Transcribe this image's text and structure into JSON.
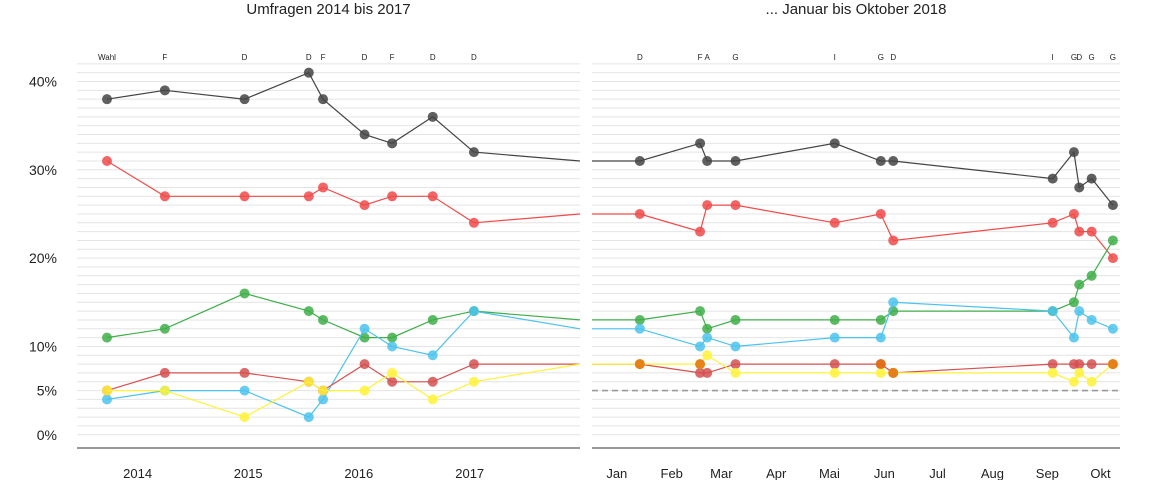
{
  "chart_data": {
    "type": "line",
    "y_ticks": [
      "0%",
      "5%",
      "10%",
      "20%",
      "30%",
      "40%"
    ],
    "y_tick_values": [
      0,
      5,
      10,
      20,
      30,
      40
    ],
    "ylim": [
      -1.5,
      43
    ],
    "grid": "horizontal lines every 1%",
    "threshold": 5,
    "colors": {
      "black": "#444444",
      "red": "#f04a4a",
      "green": "#3fae49",
      "blue": "#4cc3ec",
      "darkred": "#d55050",
      "yellow": "#fff23a",
      "orange": "#e07010"
    },
    "panels": [
      {
        "title": "Umfragen 2014 bis 2017",
        "xlim": [
          "2013-06-15",
          "2017-12-31"
        ],
        "x_ticks": [
          {
            "date": "2014-01-01",
            "label": "2014"
          },
          {
            "date": "2015-01-01",
            "label": "2015"
          },
          {
            "date": "2016-01-01",
            "label": "2016"
          },
          {
            "date": "2017-01-01",
            "label": "2017"
          }
        ],
        "sources": [
          {
            "date": "2013-09-22",
            "label": "Wahl"
          },
          {
            "date": "2014-04-01",
            "label": "F"
          },
          {
            "date": "2014-12-20",
            "label": "D"
          },
          {
            "date": "2015-07-20",
            "label": "D"
          },
          {
            "date": "2015-09-05",
            "label": "F"
          },
          {
            "date": "2016-01-20",
            "label": "D"
          },
          {
            "date": "2016-04-20",
            "label": "F"
          },
          {
            "date": "2016-09-01",
            "label": "D"
          },
          {
            "date": "2017-01-15",
            "label": "D"
          }
        ],
        "series": [
          {
            "color": "black",
            "dates": [
              "2013-09-22",
              "2014-04-01",
              "2014-12-20",
              "2015-07-20",
              "2015-09-05",
              "2016-01-20",
              "2016-04-20",
              "2016-09-01",
              "2017-01-15",
              "2017-12-31"
            ],
            "values": [
              38,
              39,
              38,
              41,
              38,
              34,
              33,
              36,
              32,
              31
            ],
            "markers": 9
          },
          {
            "color": "red",
            "dates": [
              "2013-09-22",
              "2014-04-01",
              "2014-12-20",
              "2015-07-20",
              "2015-09-05",
              "2016-01-20",
              "2016-04-20",
              "2016-09-01",
              "2017-01-15",
              "2017-12-31"
            ],
            "values": [
              31,
              27,
              27,
              27,
              28,
              26,
              27,
              27,
              24,
              25
            ],
            "markers": 9
          },
          {
            "color": "green",
            "dates": [
              "2013-09-22",
              "2014-04-01",
              "2014-12-20",
              "2015-07-20",
              "2015-09-05",
              "2016-01-20",
              "2016-04-20",
              "2016-09-01",
              "2017-01-15",
              "2017-12-31"
            ],
            "values": [
              11,
              12,
              16,
              14,
              13,
              11,
              11,
              13,
              14,
              13
            ],
            "markers": 9
          },
          {
            "color": "blue",
            "dates": [
              "2013-09-22",
              "2014-04-01",
              "2014-12-20",
              "2015-07-20",
              "2015-09-05",
              "2016-01-20",
              "2016-04-20",
              "2016-09-01",
              "2017-01-15",
              "2017-12-31"
            ],
            "values": [
              4,
              5,
              5,
              2,
              4,
              12,
              10,
              9,
              14,
              12
            ],
            "markers": 9
          },
          {
            "color": "darkred",
            "dates": [
              "2013-09-22",
              "2014-04-01",
              "2014-12-20",
              "2015-07-20",
              "2015-09-05",
              "2016-01-20",
              "2016-04-20",
              "2016-09-01",
              "2017-01-15",
              "2017-12-31"
            ],
            "values": [
              5,
              7,
              7,
              6,
              5,
              8,
              6,
              6,
              8,
              8
            ],
            "markers": 9
          },
          {
            "color": "yellow",
            "dates": [
              "2013-09-22",
              "2014-04-01",
              "2014-12-20",
              "2015-07-20",
              "2015-09-05",
              "2016-01-20",
              "2016-04-20",
              "2016-09-01",
              "2017-01-15",
              "2017-12-31"
            ],
            "values": [
              5,
              5,
              2,
              6,
              5,
              5,
              7,
              4,
              6,
              8
            ],
            "markers": 9
          }
        ]
      },
      {
        "title": "... Januar bis Oktober 2018",
        "xlim": [
          "2018-01-01",
          "2018-10-26"
        ],
        "x_ticks": [
          {
            "date": "2018-01-15",
            "label": "Jan"
          },
          {
            "date": "2018-02-15",
            "label": "Feb"
          },
          {
            "date": "2018-03-15",
            "label": "Mar"
          },
          {
            "date": "2018-04-15",
            "label": "Apr"
          },
          {
            "date": "2018-05-15",
            "label": "Mai"
          },
          {
            "date": "2018-06-15",
            "label": "Jun"
          },
          {
            "date": "2018-07-15",
            "label": "Jul"
          },
          {
            "date": "2018-08-15",
            "label": "Aug"
          },
          {
            "date": "2018-09-15",
            "label": "Sep"
          },
          {
            "date": "2018-10-15",
            "label": "Okt"
          }
        ],
        "sources": [
          {
            "date": "2018-01-28",
            "label": "D"
          },
          {
            "date": "2018-03-03",
            "label": "F"
          },
          {
            "date": "2018-03-07",
            "label": "A"
          },
          {
            "date": "2018-03-23",
            "label": "G"
          },
          {
            "date": "2018-05-18",
            "label": "I"
          },
          {
            "date": "2018-06-13",
            "label": "G"
          },
          {
            "date": "2018-06-20",
            "label": "D"
          },
          {
            "date": "2018-09-18",
            "label": "I"
          },
          {
            "date": "2018-09-30",
            "label": "G"
          },
          {
            "date": "2018-10-03",
            "label": "D"
          },
          {
            "date": "2018-10-10",
            "label": "G"
          },
          {
            "date": "2018-10-22",
            "label": "G"
          }
        ],
        "series": [
          {
            "color": "black",
            "dates": [
              "2018-01-01",
              "2018-01-28",
              "2018-03-03",
              "2018-03-07",
              "2018-03-23",
              "2018-05-18",
              "2018-06-13",
              "2018-06-20",
              "2018-09-18",
              "2018-09-30",
              "2018-10-03",
              "2018-10-10",
              "2018-10-22"
            ],
            "values": [
              31,
              31,
              33,
              31,
              31,
              33,
              31,
              31,
              29,
              32,
              28,
              29,
              26
            ],
            "markers": 12
          },
          {
            "color": "red",
            "dates": [
              "2018-01-01",
              "2018-01-28",
              "2018-03-03",
              "2018-03-07",
              "2018-03-23",
              "2018-05-18",
              "2018-06-13",
              "2018-06-20",
              "2018-09-18",
              "2018-09-30",
              "2018-10-03",
              "2018-10-10",
              "2018-10-22"
            ],
            "values": [
              25,
              25,
              23,
              26,
              26,
              24,
              25,
              22,
              24,
              25,
              23,
              23,
              20
            ],
            "markers": 12
          },
          {
            "color": "green",
            "dates": [
              "2018-01-01",
              "2018-01-28",
              "2018-03-03",
              "2018-03-07",
              "2018-03-23",
              "2018-05-18",
              "2018-06-13",
              "2018-06-20",
              "2018-09-18",
              "2018-09-30",
              "2018-10-03",
              "2018-10-10",
              "2018-10-22"
            ],
            "values": [
              13,
              13,
              14,
              12,
              13,
              13,
              13,
              14,
              14,
              15,
              17,
              18,
              22
            ],
            "markers": 12
          },
          {
            "color": "blue",
            "dates": [
              "2018-01-01",
              "2018-01-28",
              "2018-03-03",
              "2018-03-07",
              "2018-03-23",
              "2018-05-18",
              "2018-06-13",
              "2018-06-20",
              "2018-09-18",
              "2018-09-30",
              "2018-10-03",
              "2018-10-10",
              "2018-10-22"
            ],
            "values": [
              12,
              12,
              10,
              11,
              10,
              11,
              11,
              15,
              14,
              11,
              14,
              13,
              12
            ],
            "markers": 12
          },
          {
            "color": "darkred",
            "dates": [
              "2018-01-01",
              "2018-01-28",
              "2018-03-03",
              "2018-03-07",
              "2018-03-23",
              "2018-05-18",
              "2018-06-13",
              "2018-06-20",
              "2018-09-18",
              "2018-09-30",
              "2018-10-03",
              "2018-10-10",
              "2018-10-22"
            ],
            "values": [
              8,
              8,
              7,
              7,
              8,
              8,
              8,
              7,
              8,
              8,
              8,
              8,
              8
            ],
            "markers": 12
          },
          {
            "color": "yellow",
            "dates": [
              "2018-01-01",
              "2018-01-28",
              "2018-03-03",
              "2018-03-07",
              "2018-03-23",
              "2018-05-18",
              "2018-06-13",
              "2018-06-20",
              "2018-09-18",
              "2018-09-30",
              "2018-10-03",
              "2018-10-10",
              "2018-10-22"
            ],
            "values": [
              8,
              8,
              8,
              9,
              7,
              7,
              7,
              7,
              7,
              6,
              7,
              6,
              8
            ],
            "markers": 12
          },
          {
            "color": "orange",
            "dates": [
              "2018-01-28",
              "2018-03-03",
              "2018-06-13",
              "2018-06-20",
              "2018-10-22"
            ],
            "values": [
              8,
              8,
              8,
              7,
              8
            ],
            "markers": 5
          }
        ]
      }
    ]
  }
}
